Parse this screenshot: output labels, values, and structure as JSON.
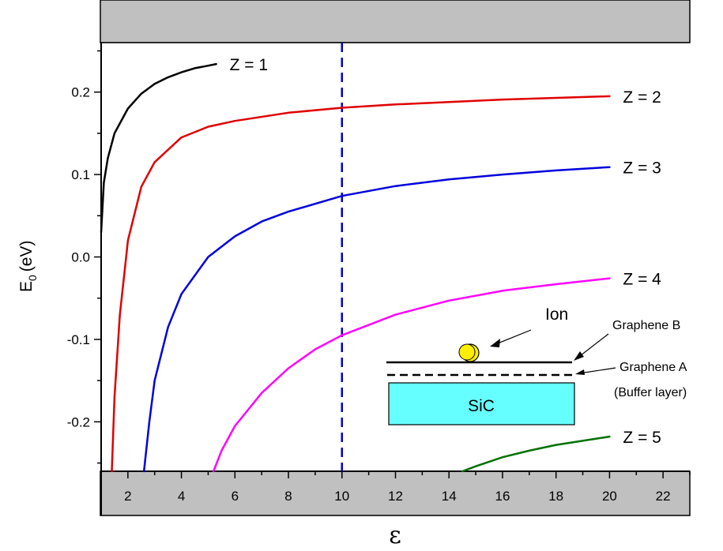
{
  "chart_data": {
    "type": "line",
    "title": "",
    "xlabel": "ε",
    "ylabel": "E",
    "ylabel_sub": "0",
    "ylabel_unit": "(eV)",
    "xlim": [
      1,
      23
    ],
    "ylim": [
      -0.26,
      0.26
    ],
    "xticks": [
      "2",
      "4",
      "6",
      "8",
      "10",
      "12",
      "14",
      "16",
      "18",
      "20",
      "22"
    ],
    "yticks": [
      "0.2",
      "0.1",
      "0.0",
      "-0.1",
      "-0.2"
    ],
    "grid": false,
    "reference_line": {
      "x": 10,
      "color": "#0000cc",
      "style": "dashed"
    },
    "series": [
      {
        "name": "Z = 1",
        "color": "#000000",
        "x": [
          1.0,
          1.1,
          1.25,
          1.5,
          2.0,
          2.5,
          3.0,
          3.5,
          4.0,
          4.5,
          5.0,
          5.3
        ],
        "y": [
          0.03,
          0.09,
          0.12,
          0.15,
          0.18,
          0.198,
          0.21,
          0.218,
          0.224,
          0.229,
          0.232,
          0.234
        ]
      },
      {
        "name": "Z = 2",
        "color": "#e00000",
        "x": [
          1.4,
          1.5,
          1.7,
          2.0,
          2.5,
          3.0,
          4.0,
          5.0,
          6.0,
          8.0,
          10.0,
          12.0,
          14.0,
          16.0,
          18.0,
          20.0
        ],
        "y": [
          -0.26,
          -0.17,
          -0.07,
          0.02,
          0.085,
          0.115,
          0.145,
          0.158,
          0.165,
          0.175,
          0.181,
          0.185,
          0.188,
          0.191,
          0.193,
          0.195
        ]
      },
      {
        "name": "Z = 3",
        "color": "#0000dd",
        "x": [
          2.6,
          2.8,
          3.0,
          3.5,
          4.0,
          5.0,
          6.0,
          7.0,
          8.0,
          10.0,
          12.0,
          14.0,
          16.0,
          18.0,
          20.0
        ],
        "y": [
          -0.26,
          -0.2,
          -0.15,
          -0.085,
          -0.045,
          0.0,
          0.025,
          0.043,
          0.055,
          0.074,
          0.086,
          0.094,
          0.1,
          0.105,
          0.109
        ]
      },
      {
        "name": "Z = 4",
        "color": "#ff00ff",
        "x": [
          5.2,
          5.5,
          6.0,
          7.0,
          8.0,
          9.0,
          10.0,
          12.0,
          14.0,
          16.0,
          18.0,
          20.0
        ],
        "y": [
          -0.26,
          -0.235,
          -0.205,
          -0.165,
          -0.135,
          -0.112,
          -0.095,
          -0.07,
          -0.053,
          -0.041,
          -0.033,
          -0.026
        ]
      },
      {
        "name": "Z = 5",
        "color": "#007000",
        "x": [
          14.5,
          15.0,
          16.0,
          17.0,
          18.0,
          19.0,
          20.0
        ],
        "y": [
          -0.26,
          -0.254,
          -0.243,
          -0.235,
          -0.228,
          -0.223,
          -0.218
        ]
      }
    ],
    "inset": {
      "ion_label": "Ion",
      "graphene_b_label": "Graphene B",
      "graphene_a_label": "Graphene A",
      "buffer_label": "(Buffer layer)",
      "substrate_label": "SiC",
      "substrate_color": "#66ffff",
      "ion_color": "#ffee00"
    }
  }
}
